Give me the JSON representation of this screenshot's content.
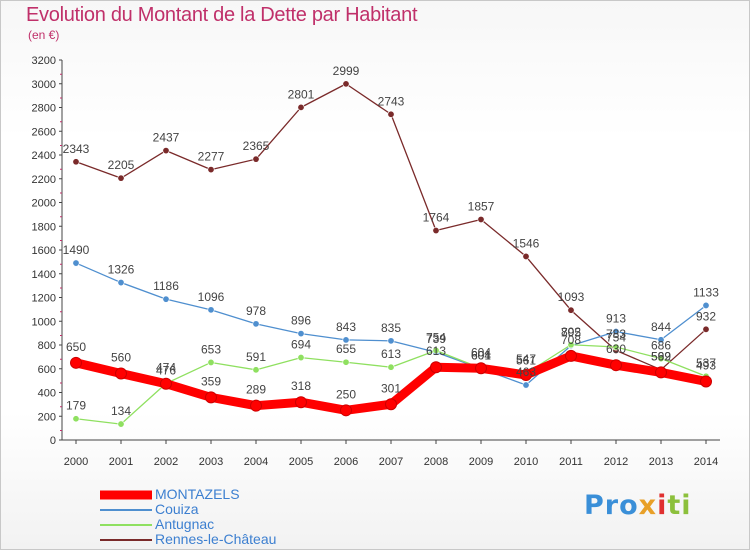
{
  "header": {
    "title": "Evolution du Montant de la Dette par Habitant",
    "subtitle": "(en €)"
  },
  "logo": {
    "p1": "Pro",
    "p2": "x",
    "p3": "i",
    "p4": "ti"
  },
  "colors": {
    "MONTAZELS": "#ff0000",
    "Couiza": "#4f8fcf",
    "Antugnac": "#8fe060",
    "Rennes-le-Château": "#7a2a2a",
    "accent_title": "#c0306a",
    "legend_text": "#3c7fd0"
  },
  "chart_data": {
    "type": "line",
    "title": "Evolution du Montant de la Dette par Habitant",
    "subtitle": "(en €)",
    "xlabel": "",
    "ylabel": "",
    "x": [
      "2000",
      "2001",
      "2002",
      "2003",
      "2004",
      "2005",
      "2006",
      "2007",
      "2008",
      "2009",
      "2010",
      "2011",
      "2012",
      "2013",
      "2014"
    ],
    "ylim": [
      0,
      3200
    ],
    "yticks": [
      0,
      200,
      400,
      600,
      800,
      1000,
      1200,
      1400,
      1600,
      1800,
      2000,
      2200,
      2400,
      2600,
      2800,
      3000,
      3200
    ],
    "grid": false,
    "legend_position": "bottom-left",
    "series": [
      {
        "name": "Rennes-le-Château",
        "color": "#7a2a2a",
        "values": [
          2343,
          2205,
          2437,
          2277,
          2365,
          2801,
          2999,
          2743,
          1764,
          1857,
          1546,
          1093,
          754,
          592,
          932
        ]
      },
      {
        "name": "Couiza",
        "color": "#4f8fcf",
        "values": [
          1490,
          1326,
          1186,
          1096,
          978,
          896,
          843,
          835,
          739,
          601,
          463,
          795,
          913,
          844,
          1133
        ]
      },
      {
        "name": "Antugnac",
        "color": "#8fe060",
        "values": [
          179,
          134,
          476,
          653,
          591,
          694,
          655,
          613,
          754,
          604,
          561,
          802,
          783,
          686,
          537
        ]
      },
      {
        "name": "MONTAZELS",
        "color": "#ff0000",
        "values": [
          650,
          560,
          474,
          359,
          289,
          318,
          250,
          301,
          613,
          604,
          547,
          708,
          630,
          569,
          493
        ]
      }
    ],
    "legend_order": [
      "MONTAZELS",
      "Couiza",
      "Antugnac",
      "Rennes-le-Château"
    ]
  }
}
